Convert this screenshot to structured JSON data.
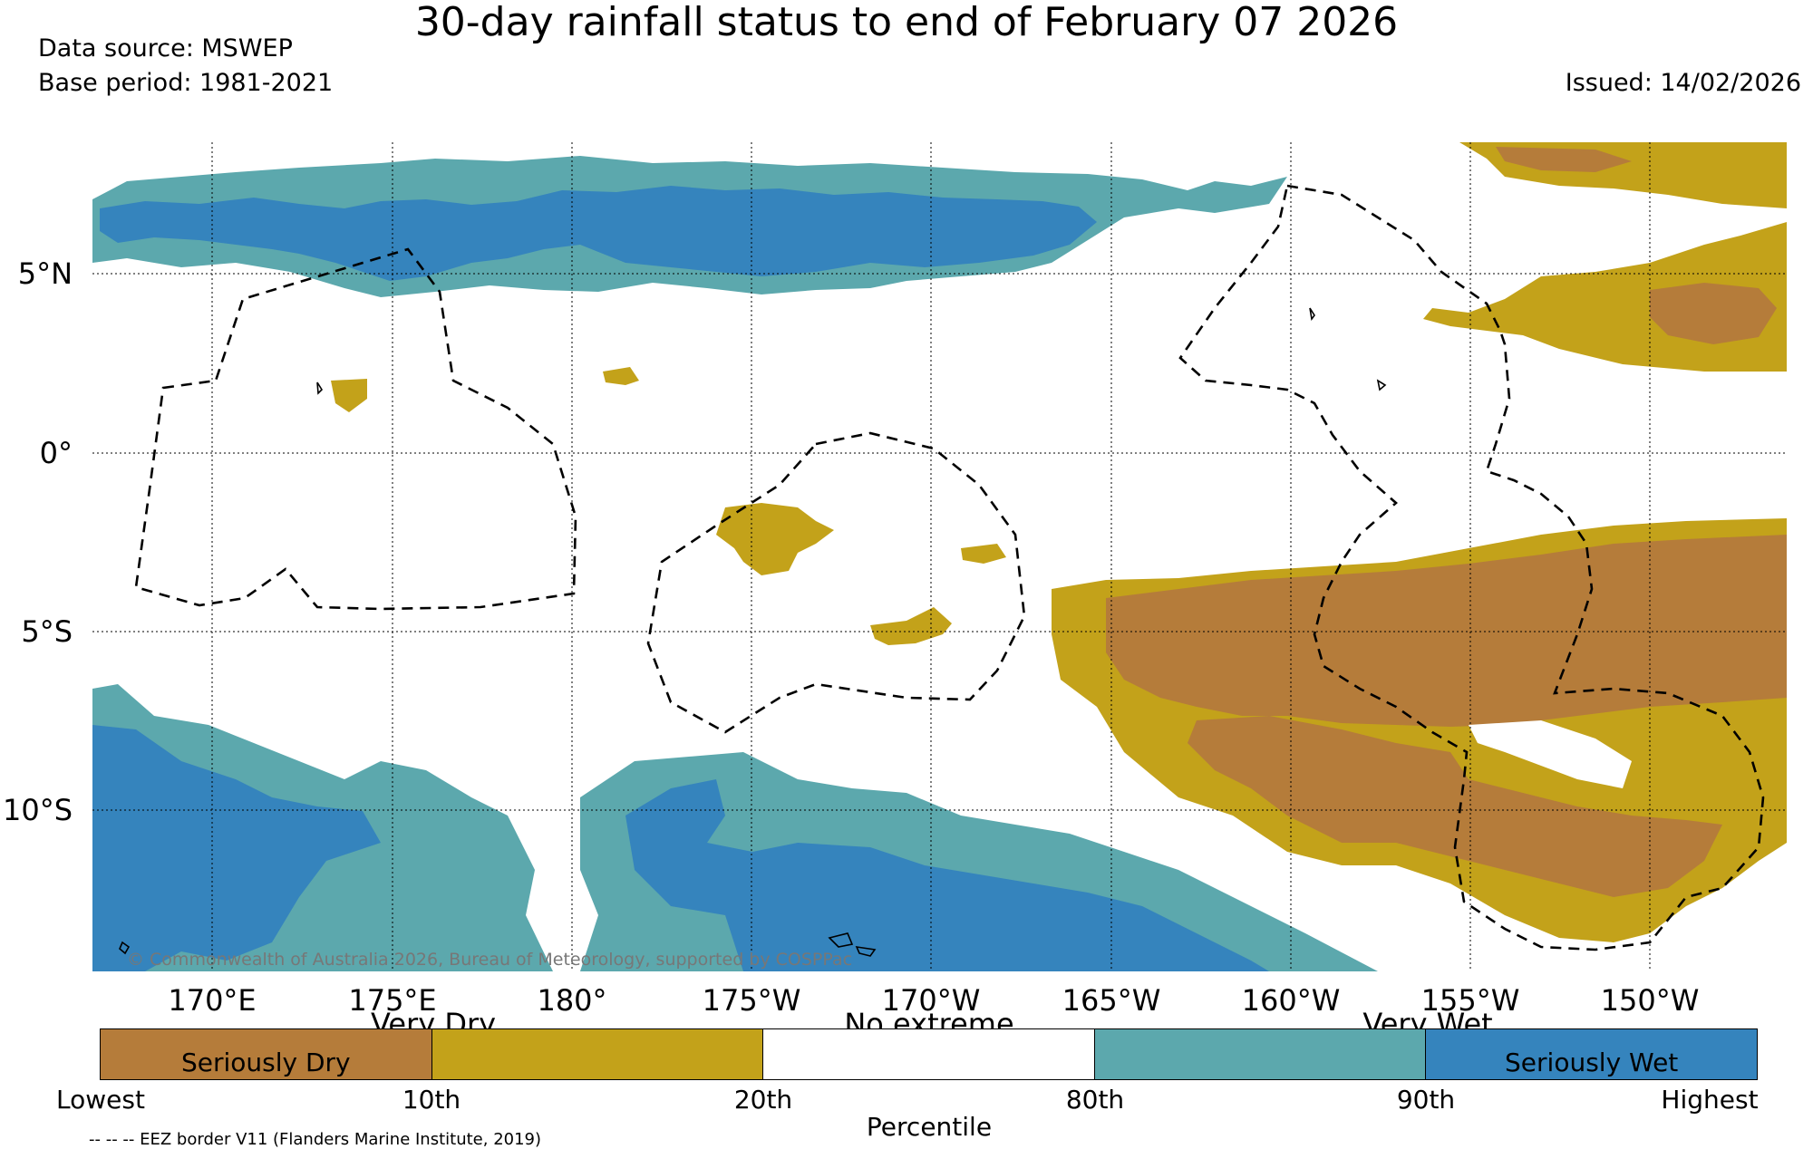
{
  "header": {
    "title": "30-day rainfall status to end of February 07 2026",
    "data_source": "Data source: MSWEP",
    "base_period": "Base period: 1981-2021",
    "issued": "Issued: 14/02/2026"
  },
  "map": {
    "lat_labels": [
      "5°N",
      "0°",
      "5°S",
      "10°S"
    ],
    "lon_labels": [
      "170°E",
      "175°E",
      "180°",
      "175°W",
      "170°W",
      "165°W",
      "160°W",
      "155°W",
      "150°W"
    ],
    "copyright": "© Commonwealth of Australia 2026, Bureau of Meteorology, supported by COSPPac",
    "colors": {
      "seriously_dry": "#b57c3a",
      "very_dry": "#c3a21a",
      "no_extreme": "#ffffff",
      "very_wet": "#5ca8ad",
      "seriously_wet": "#3584bd"
    }
  },
  "legend": {
    "band_labels": [
      "Very Dry",
      "No extreme",
      "Very Wet"
    ],
    "cell_labels": [
      "Seriously Dry",
      "",
      "",
      "",
      "Seriously Wet"
    ],
    "percentiles": [
      "Lowest",
      "10th",
      "20th",
      "80th",
      "90th",
      "Highest"
    ],
    "axis_label": "Percentile",
    "eez_note": "-- -- -- EEZ border V11 (Flanders Marine Institute, 2019)"
  }
}
